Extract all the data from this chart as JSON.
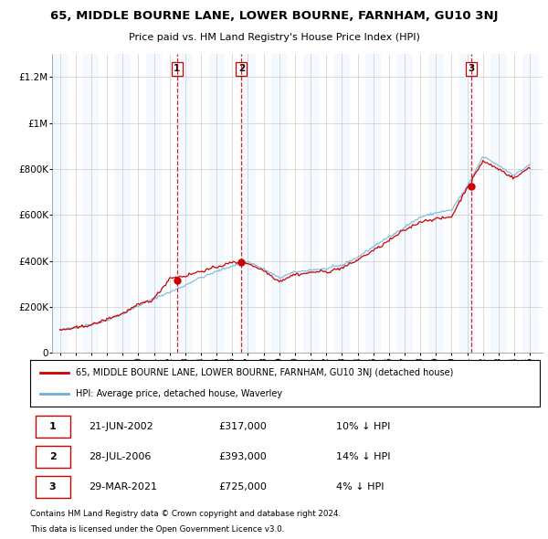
{
  "title": "65, MIDDLE BOURNE LANE, LOWER BOURNE, FARNHAM, GU10 3NJ",
  "subtitle": "Price paid vs. HM Land Registry's House Price Index (HPI)",
  "legend_line1": "65, MIDDLE BOURNE LANE, LOWER BOURNE, FARNHAM, GU10 3NJ (detached house)",
  "legend_line2": "HPI: Average price, detached house, Waverley",
  "footer1": "Contains HM Land Registry data © Crown copyright and database right 2024.",
  "footer2": "This data is licensed under the Open Government Licence v3.0.",
  "transactions": [
    {
      "num": 1,
      "date": "21-JUN-2002",
      "price": 317000,
      "pct": "10%",
      "year_x": 2002.47
    },
    {
      "num": 2,
      "date": "28-JUL-2006",
      "price": 393000,
      "pct": "14%",
      "year_x": 2006.58
    },
    {
      "num": 3,
      "date": "29-MAR-2021",
      "price": 725000,
      "pct": "4%",
      "year_x": 2021.24
    }
  ],
  "hpi_color": "#6baed6",
  "price_color": "#cc0000",
  "dashed_color": "#cc0000",
  "col_bg_color": "#ddeeff",
  "grid_color": "#cccccc",
  "ylim": [
    0,
    1300000
  ],
  "xlim_start": 1994.5,
  "xlim_end": 2025.8,
  "yticks": [
    0,
    200000,
    400000,
    600000,
    800000,
    1000000,
    1200000
  ],
  "ytick_labels": [
    "0",
    "£200K",
    "£400K",
    "£600K",
    "£800K",
    "£1M",
    "£1.2M"
  ]
}
